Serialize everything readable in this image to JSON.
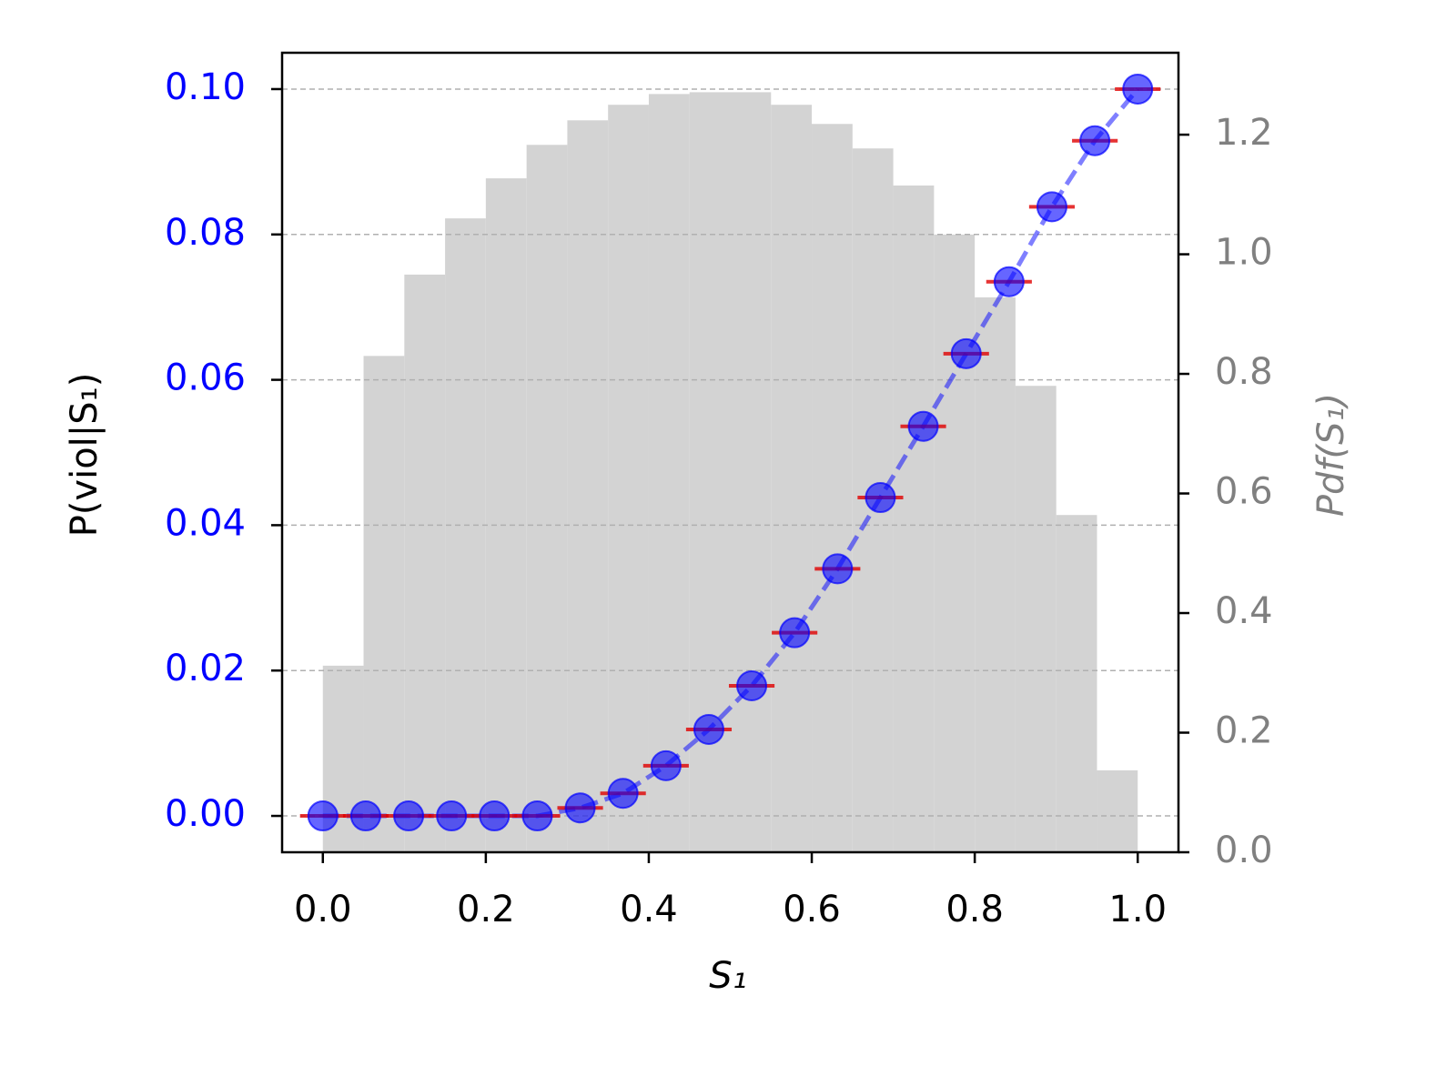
{
  "chart_data": {
    "type": "combo",
    "xlabel": "S₁",
    "ylabel": "P(viol|S₁)",
    "y2label": "Pdf(S₁)",
    "xlim": [
      -0.05,
      1.05
    ],
    "xticks": [
      {
        "value": 0,
        "label": "0.0"
      },
      0.2,
      0.4,
      0.6,
      0.8,
      {
        "value": 1,
        "label": "1.0"
      }
    ],
    "ylim": [
      -0.005,
      0.105
    ],
    "yticks": [
      {
        "value": 0,
        "label": "0.00"
      },
      {
        "value": 0.02,
        "label": "0.02"
      },
      {
        "value": 0.04,
        "label": "0.04"
      },
      {
        "value": 0.06,
        "label": "0.06"
      },
      {
        "value": 0.08,
        "label": "0.08"
      },
      {
        "value": 0.1,
        "label": "0.10"
      }
    ],
    "y2lim": [
      0,
      1.337
    ],
    "y2ticks": [
      {
        "value": 0,
        "label": "0.0"
      },
      0.2,
      0.4,
      0.6,
      0.8,
      {
        "value": 1,
        "label": "1.0"
      },
      1.2
    ],
    "ytick_color": "#0000ff",
    "y2tick_color": "#808080",
    "grid": true,
    "series": [
      {
        "type": "histogram",
        "axis": "y2",
        "color": "#d3d3d3",
        "bins": [
          0,
          0.05,
          0.1,
          0.15,
          0.2,
          0.25,
          0.3,
          0.35,
          0.4,
          0.45,
          0.5,
          0.55,
          0.6,
          0.65,
          0.7,
          0.75,
          0.8,
          0.85,
          0.9,
          0.95,
          1
        ],
        "values": [
          0.312,
          0.83,
          0.966,
          1.06,
          1.127,
          1.183,
          1.224,
          1.25,
          1.268,
          1.271,
          1.271,
          1.25,
          1.218,
          1.177,
          1.115,
          1.033,
          0.928,
          0.78,
          0.564,
          0.137
        ]
      },
      {
        "type": "scatter",
        "color": "#0000ff",
        "error_color": "#e00000",
        "linestyle": "dashed",
        "xerr": 0.028,
        "x": [
          0,
          0.0526,
          0.1053,
          0.1579,
          0.2105,
          0.2632,
          0.3158,
          0.3684,
          0.4211,
          0.4737,
          0.5263,
          0.5789,
          0.6316,
          0.6842,
          0.7368,
          0.7895,
          0.8421,
          0.8947,
          0.9474,
          1
        ],
        "values": [
          0,
          0,
          0,
          0,
          0,
          0,
          0.0011,
          0.0031,
          0.0069,
          0.0119,
          0.0179,
          0.0252,
          0.034,
          0.0438,
          0.0536,
          0.0636,
          0.0735,
          0.0838,
          0.0929,
          0.1
        ]
      }
    ]
  }
}
